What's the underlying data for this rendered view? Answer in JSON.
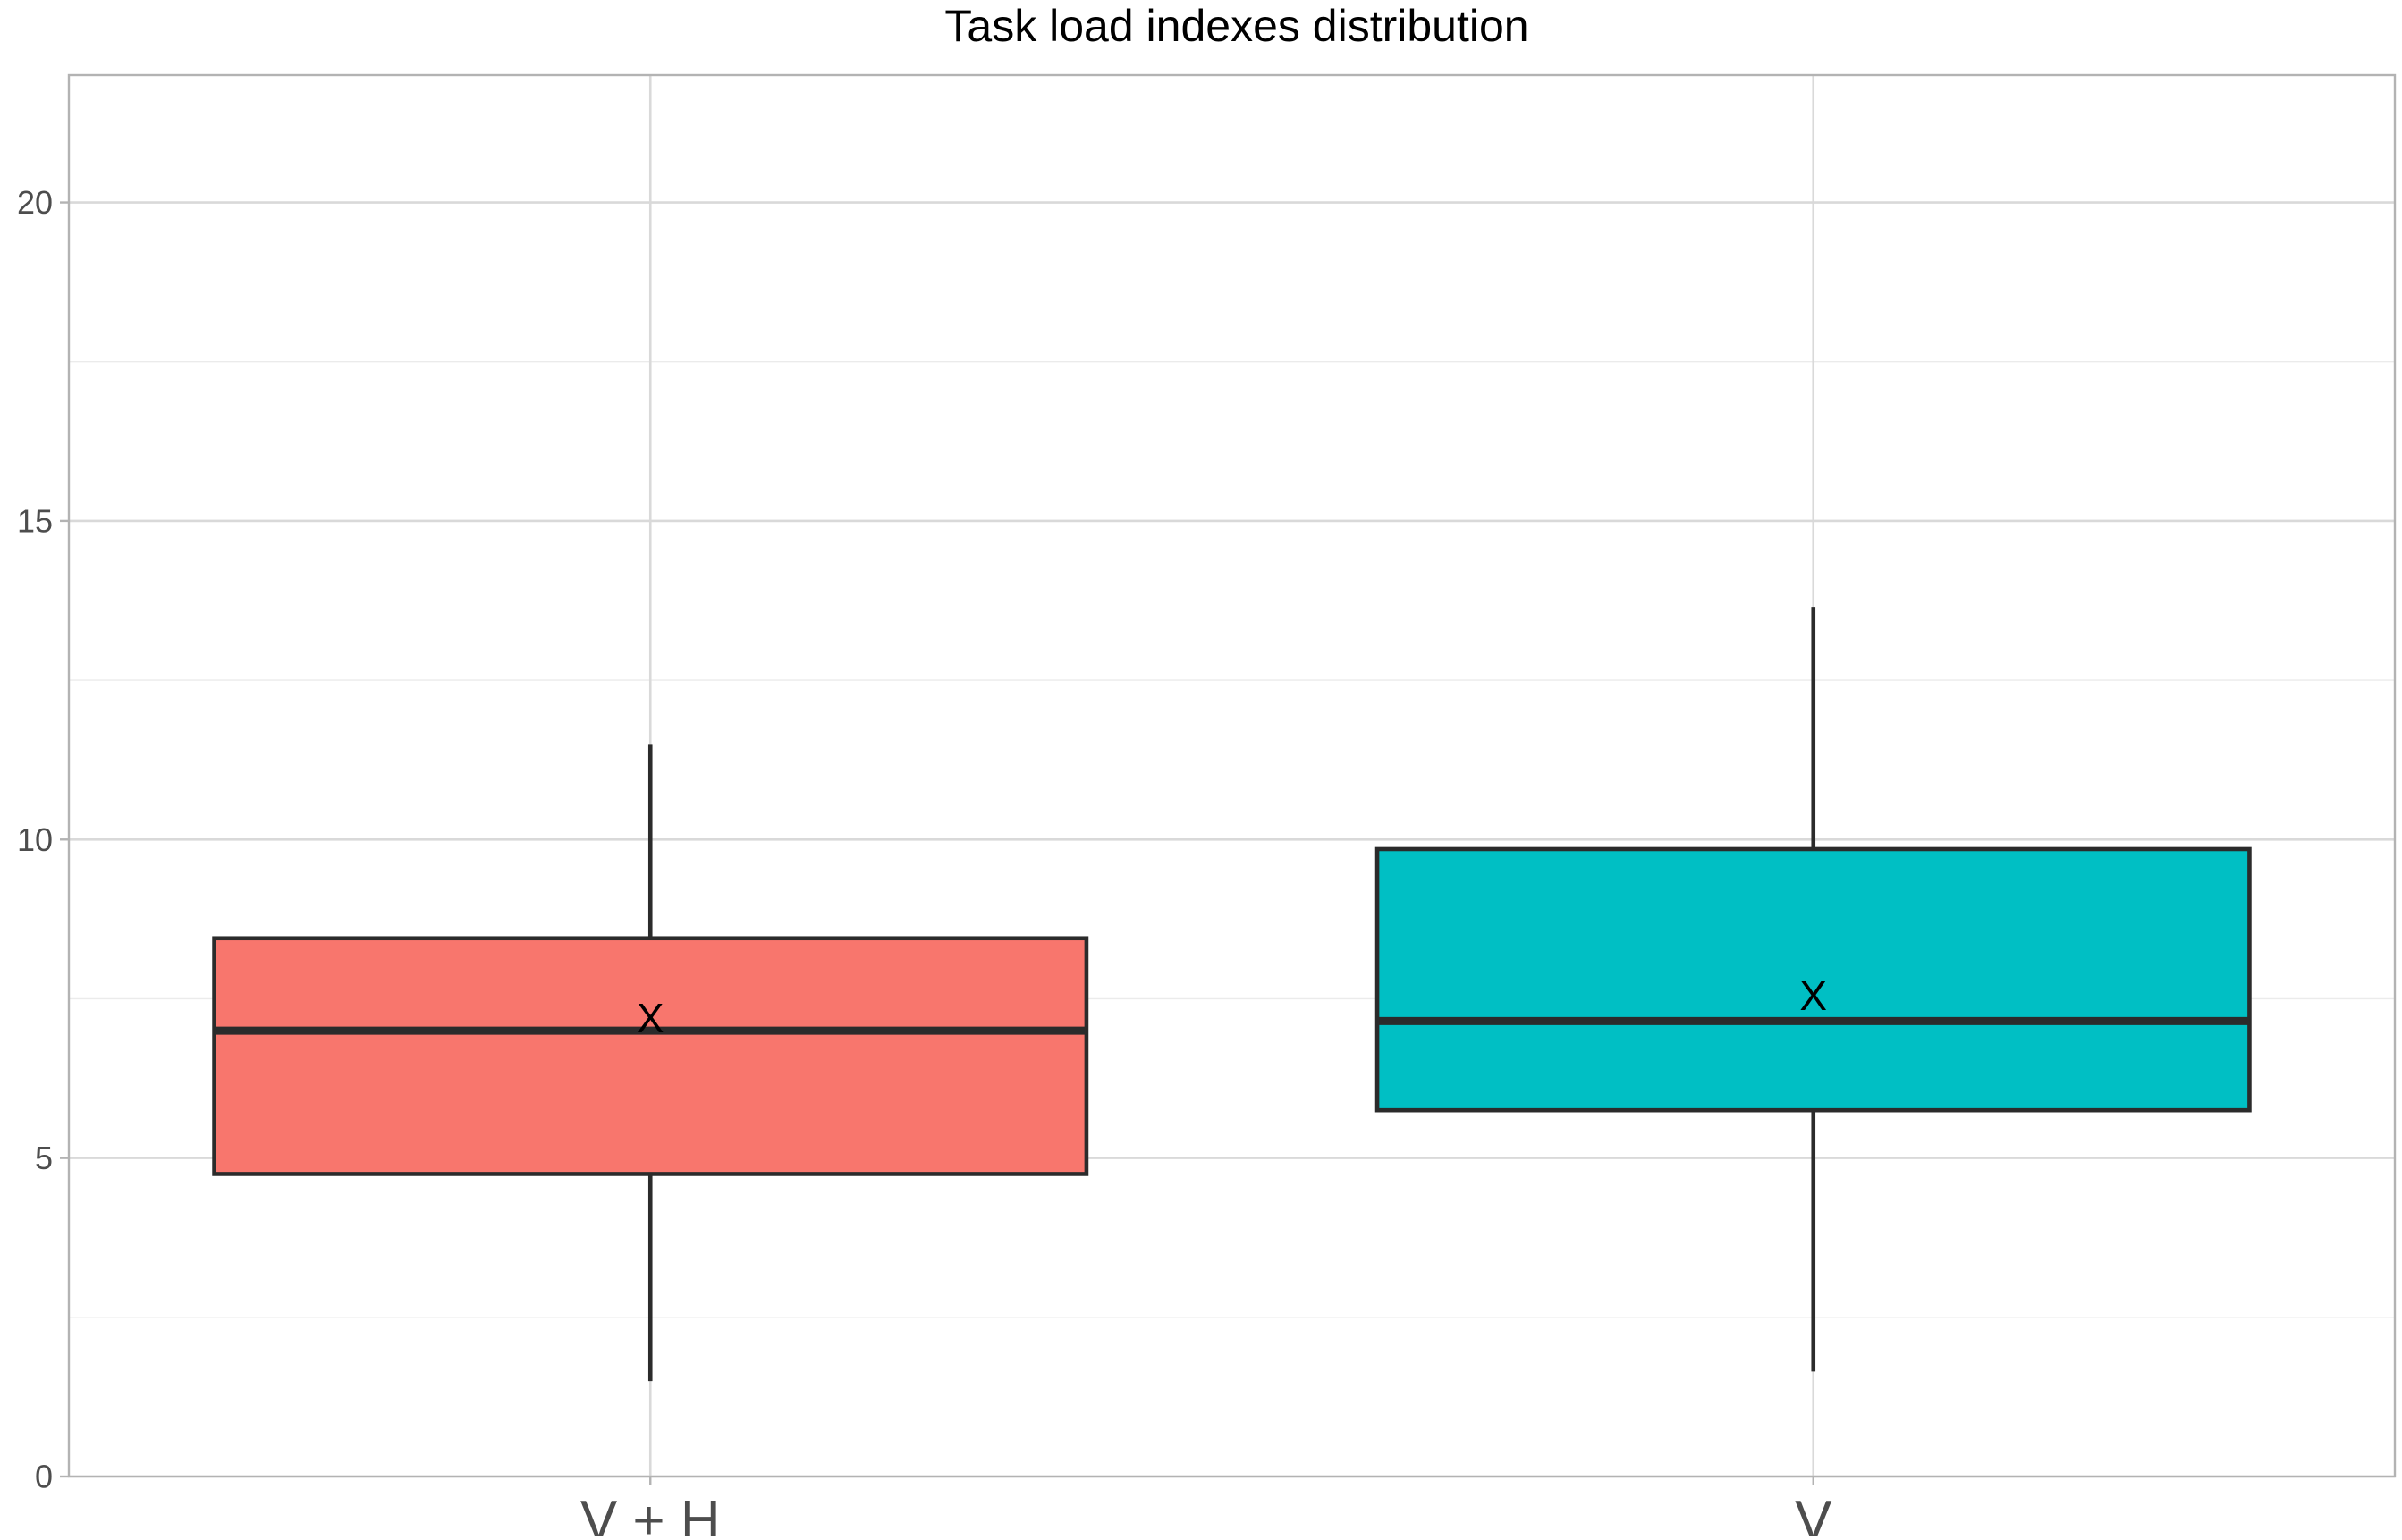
{
  "chart_data": {
    "type": "boxplot",
    "title": "Task load indexes distribution",
    "xlabel": "",
    "ylabel": "",
    "ylim": [
      0,
      22
    ],
    "y_ticks": [
      0,
      5,
      10,
      15,
      20
    ],
    "y_minor_ticks": [
      2.5,
      7.5,
      12.5,
      17.5
    ],
    "grid": true,
    "legend": "none",
    "mean_marker": "X",
    "categories": [
      "V + H",
      "V"
    ],
    "boxes": [
      {
        "category": "V + H",
        "whisker_low": 1.5,
        "q1": 4.75,
        "median": 7.0,
        "q3": 8.45,
        "whisker_high": 11.5,
        "mean": 7.2,
        "color": "#f8766d"
      },
      {
        "category": "V",
        "whisker_low": 1.65,
        "q1": 5.75,
        "median": 7.15,
        "q3": 9.85,
        "whisker_high": 13.65,
        "mean": 7.55,
        "color": "#00bfc4"
      }
    ]
  }
}
